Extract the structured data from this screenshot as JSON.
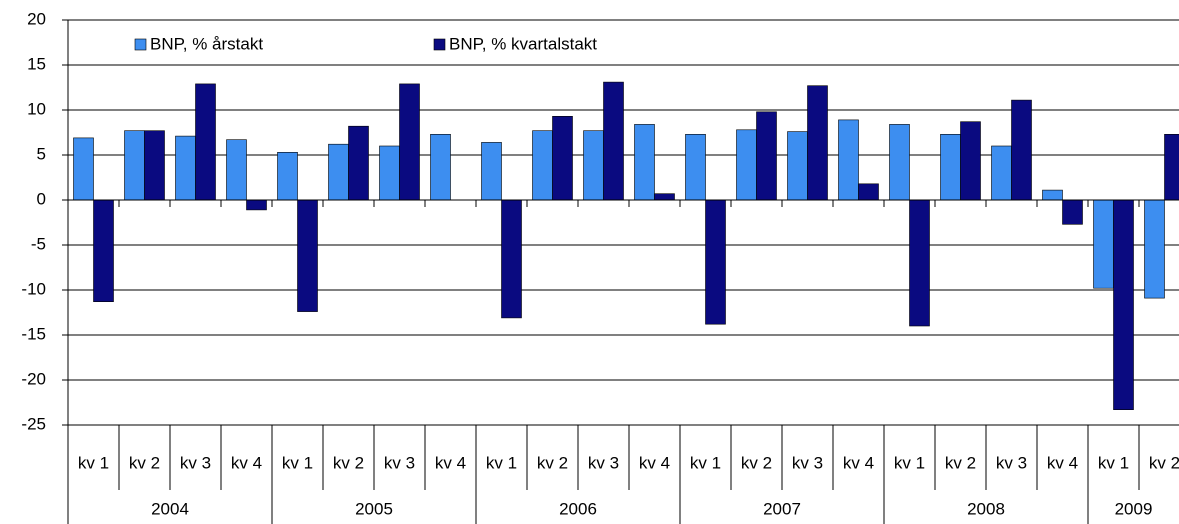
{
  "chart_data": {
    "type": "bar",
    "categories": [
      "kv 1",
      "kv 2",
      "kv 3",
      "kv 4",
      "kv 1",
      "kv 2",
      "kv 3",
      "kv 4",
      "kv 1",
      "kv 2",
      "kv 3",
      "kv 4",
      "kv 1",
      "kv 2",
      "kv 3",
      "kv 4",
      "kv 1",
      "kv 2",
      "kv 3",
      "kv 4",
      "kv 1",
      "kv 2"
    ],
    "x_groups": [
      "2004",
      "2005",
      "2006",
      "2007",
      "2008",
      "2009"
    ],
    "series": [
      {
        "name": "BNP, % årstakt",
        "color": "#3d8ef0",
        "values": [
          6.9,
          7.7,
          7.1,
          6.7,
          5.3,
          6.2,
          6.0,
          7.3,
          6.4,
          7.7,
          7.7,
          8.4,
          7.3,
          7.8,
          7.6,
          8.9,
          8.4,
          7.3,
          6.0,
          1.1,
          -9.8,
          -10.9
        ]
      },
      {
        "name": "BNP, % kvartalstakt",
        "color": "#0a0a80",
        "values": [
          -11.3,
          7.7,
          12.9,
          -1.1,
          -12.4,
          8.2,
          12.9,
          0,
          -13.1,
          9.3,
          13.1,
          0.7,
          -13.8,
          9.8,
          12.7,
          1.8,
          -14.0,
          8.7,
          11.1,
          -2.7,
          -23.3,
          7.3
        ]
      }
    ],
    "ylim": [
      -25,
      20
    ],
    "yticks": [
      -25,
      -20,
      -15,
      -10,
      -5,
      0,
      5,
      10,
      15,
      20
    ],
    "grid": true,
    "legend": "upper left"
  }
}
